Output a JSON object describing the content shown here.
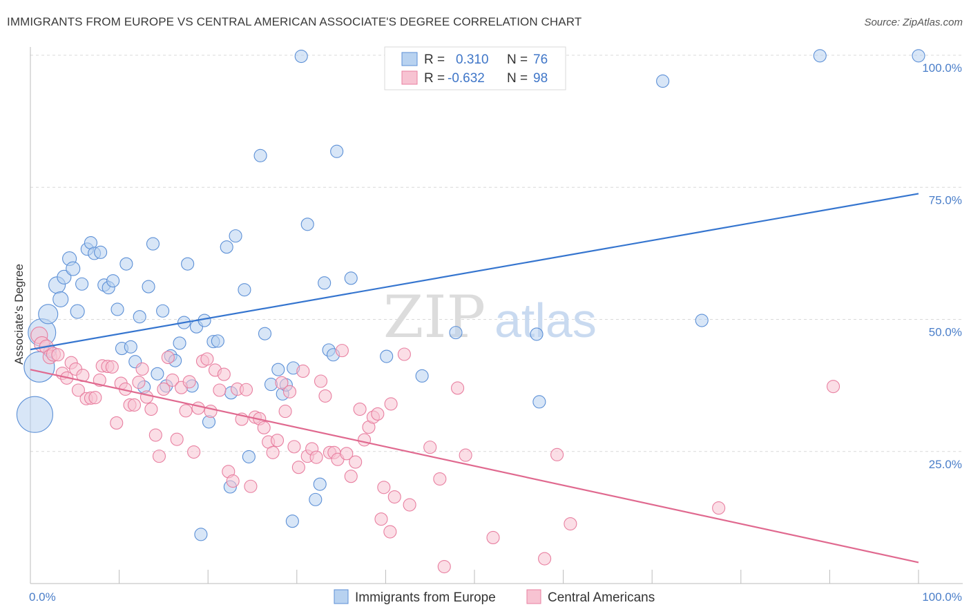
{
  "title": "IMMIGRANTS FROM EUROPE VS CENTRAL AMERICAN ASSOCIATE'S DEGREE CORRELATION CHART",
  "source": "Source: ZipAtlas.com",
  "watermark": {
    "zip": "ZIP",
    "atlas": "atlas"
  },
  "colors": {
    "blue_fill": "#b8d2f0",
    "blue_stroke": "#5b8fd6",
    "blue_line": "#3575cf",
    "pink_fill": "#f7c3d2",
    "pink_stroke": "#e87fa0",
    "pink_line": "#e0698f",
    "grid": "#d8d8d8",
    "tick_text": "#4a7ec9"
  },
  "legend": {
    "r_label": "R =",
    "n_label": "N =",
    "rows": [
      {
        "r": "0.310",
        "n": "76"
      },
      {
        "r": "-0.632",
        "n": "98"
      }
    ]
  },
  "chart_data": {
    "type": "scatter",
    "xlabel": "",
    "ylabel": "Associate's Degree",
    "xlim": [
      0,
      100
    ],
    "ylim": [
      0,
      100
    ],
    "x_tick_labels": [
      "0.0%",
      "100.0%"
    ],
    "y_tick_labels": [
      "25.0%",
      "50.0%",
      "75.0%",
      "100.0%"
    ],
    "y_ticks": [
      25,
      50,
      75,
      100
    ],
    "grid": true,
    "legend_position": "top-center",
    "series": [
      {
        "name": "Immigrants from Europe",
        "color": "#5b8fd6",
        "trend": {
          "x": [
            0,
            100
          ],
          "y": [
            44.3,
            73.8
          ]
        },
        "points": [
          [
            0.5,
            32,
            26
          ],
          [
            1,
            41,
            22
          ],
          [
            1.3,
            47.5,
            20
          ],
          [
            2,
            51,
            14
          ],
          [
            3,
            56.5,
            12
          ],
          [
            3.4,
            53.8,
            11
          ],
          [
            3.8,
            58,
            10
          ],
          [
            4.4,
            61.5,
            10
          ],
          [
            4.8,
            59.6,
            10
          ],
          [
            5.3,
            51.5,
            10
          ],
          [
            5.8,
            56.7,
            9
          ],
          [
            6.4,
            63.3,
            9
          ],
          [
            6.8,
            64.5,
            9
          ],
          [
            7.2,
            62.5,
            9
          ],
          [
            7.9,
            62.7,
            9
          ],
          [
            8.3,
            56.5,
            9
          ],
          [
            8.8,
            56,
            9
          ],
          [
            9.3,
            57.3,
            9
          ],
          [
            9.8,
            51.9,
            9
          ],
          [
            10.3,
            44.5,
            9
          ],
          [
            10.8,
            60.5,
            9
          ],
          [
            11.3,
            44.8,
            9
          ],
          [
            11.8,
            42,
            9
          ],
          [
            12.3,
            50.5,
            9
          ],
          [
            12.8,
            37.2,
            9
          ],
          [
            13.3,
            56.2,
            9
          ],
          [
            13.8,
            64.3,
            9
          ],
          [
            14.3,
            39.7,
            9
          ],
          [
            14.9,
            51.6,
            9
          ],
          [
            15.3,
            37.4,
            9
          ],
          [
            15.8,
            43.1,
            9
          ],
          [
            16.3,
            42.2,
            9
          ],
          [
            16.8,
            45.5,
            9
          ],
          [
            17.3,
            49.4,
            9
          ],
          [
            17.7,
            60.5,
            9
          ],
          [
            18.2,
            37.4,
            9
          ],
          [
            18.7,
            48.6,
            9
          ],
          [
            19.2,
            9.3,
            9
          ],
          [
            19.6,
            49.8,
            9
          ],
          [
            20.1,
            30.6,
            9
          ],
          [
            20.6,
            45.8,
            9
          ],
          [
            21.1,
            45.9,
            9
          ],
          [
            22.1,
            63.7,
            9
          ],
          [
            22.6,
            36.1,
            9
          ],
          [
            23.1,
            65.8,
            9
          ],
          [
            24.1,
            55.6,
            9
          ],
          [
            24.6,
            24,
            9
          ],
          [
            22.5,
            18.3,
            9
          ],
          [
            25.9,
            81,
            9
          ],
          [
            26.4,
            47.3,
            9
          ],
          [
            27.1,
            37.7,
            9
          ],
          [
            27.9,
            40.5,
            9
          ],
          [
            28.4,
            35.9,
            9
          ],
          [
            28.8,
            37.6,
            9
          ],
          [
            29.5,
            11.8,
            9
          ],
          [
            29.6,
            40.8,
            9
          ],
          [
            30.5,
            99.8,
            9
          ],
          [
            31.2,
            68,
            9
          ],
          [
            32.1,
            15.9,
            9
          ],
          [
            32.6,
            18.8,
            9
          ],
          [
            33.1,
            56.9,
            9
          ],
          [
            33.6,
            44.2,
            9
          ],
          [
            34.1,
            43.3,
            9
          ],
          [
            34.5,
            81.8,
            9
          ],
          [
            36.1,
            57.8,
            9
          ],
          [
            40.1,
            43,
            9
          ],
          [
            44.1,
            39.3,
            9
          ],
          [
            47.9,
            47.5,
            9
          ],
          [
            49.9,
            99.6,
            9
          ],
          [
            57,
            47.2,
            9
          ],
          [
            57.3,
            34.4,
            9
          ],
          [
            71.2,
            95.1,
            9
          ],
          [
            75.6,
            49.8,
            9
          ],
          [
            88.9,
            99.9,
            9
          ],
          [
            100,
            99.9,
            9
          ],
          [
            2.2,
            44,
            9
          ]
        ]
      },
      {
        "name": "Central Americans",
        "color": "#e87fa0",
        "trend": {
          "x": [
            0,
            100
          ],
          "y": [
            40.5,
            4
          ]
        },
        "points": [
          [
            1,
            47,
            12
          ],
          [
            1.3,
            45.3,
            11
          ],
          [
            1.8,
            44.8,
            10
          ],
          [
            2.2,
            42.9,
            10
          ],
          [
            2.6,
            43.4,
            10
          ],
          [
            3.1,
            43.3,
            9
          ],
          [
            3.6,
            39.8,
            9
          ],
          [
            4.1,
            38.9,
            9
          ],
          [
            4.6,
            41.8,
            9
          ],
          [
            5.1,
            40.6,
            9
          ],
          [
            5.4,
            36.6,
            9
          ],
          [
            5.9,
            39.4,
            9
          ],
          [
            6.3,
            35,
            9
          ],
          [
            6.8,
            35.1,
            9
          ],
          [
            7.3,
            35.2,
            9
          ],
          [
            7.8,
            38.5,
            9
          ],
          [
            8.1,
            41.2,
            9
          ],
          [
            8.7,
            41.1,
            9
          ],
          [
            9.2,
            41,
            9
          ],
          [
            9.7,
            30.4,
            9
          ],
          [
            10.2,
            37.9,
            9
          ],
          [
            10.7,
            36.8,
            9
          ],
          [
            11.2,
            33.8,
            9
          ],
          [
            11.7,
            33.8,
            9
          ],
          [
            12.2,
            38.1,
            9
          ],
          [
            12.6,
            40.6,
            9
          ],
          [
            13.1,
            35.3,
            9
          ],
          [
            13.6,
            33,
            9
          ],
          [
            14.1,
            28.1,
            9
          ],
          [
            14.5,
            24.1,
            9
          ],
          [
            15,
            36.8,
            9
          ],
          [
            15.5,
            42.8,
            9
          ],
          [
            16,
            38.5,
            9
          ],
          [
            16.5,
            27.3,
            9
          ],
          [
            17,
            37.1,
            9
          ],
          [
            17.5,
            32.7,
            9
          ],
          [
            17.9,
            38.2,
            9
          ],
          [
            18.4,
            24.9,
            9
          ],
          [
            18.9,
            33.2,
            9
          ],
          [
            19.4,
            42.1,
            9
          ],
          [
            19.9,
            42.5,
            9
          ],
          [
            20.3,
            32.6,
            9
          ],
          [
            20.8,
            40.4,
            9
          ],
          [
            21.3,
            36.6,
            9
          ],
          [
            21.8,
            39.6,
            9
          ],
          [
            22.3,
            21.2,
            9
          ],
          [
            22.8,
            19.4,
            9
          ],
          [
            23.3,
            36.8,
            9
          ],
          [
            23.8,
            31.1,
            9
          ],
          [
            24.3,
            36.7,
            9
          ],
          [
            24.8,
            18.4,
            9
          ],
          [
            25.3,
            31.5,
            9
          ],
          [
            25.8,
            31.2,
            9
          ],
          [
            26.3,
            29.5,
            9
          ],
          [
            26.8,
            26.8,
            9
          ],
          [
            27.3,
            24.8,
            9
          ],
          [
            27.8,
            27.1,
            9
          ],
          [
            28.3,
            38,
            9
          ],
          [
            28.7,
            32.6,
            9
          ],
          [
            29.2,
            36.3,
            9
          ],
          [
            29.7,
            25.9,
            9
          ],
          [
            30.2,
            22,
            9
          ],
          [
            30.7,
            40.2,
            9
          ],
          [
            31.2,
            24.1,
            9
          ],
          [
            31.7,
            25.5,
            9
          ],
          [
            32.2,
            23.9,
            9
          ],
          [
            32.7,
            38.3,
            9
          ],
          [
            33.2,
            35.5,
            9
          ],
          [
            33.7,
            24.8,
            9
          ],
          [
            34.2,
            24.8,
            9
          ],
          [
            34.6,
            23.5,
            9
          ],
          [
            35.1,
            44.1,
            9
          ],
          [
            35.6,
            24.6,
            9
          ],
          [
            36.1,
            20.3,
            9
          ],
          [
            36.6,
            23,
            9
          ],
          [
            37.1,
            33,
            9
          ],
          [
            37.6,
            27.2,
            9
          ],
          [
            38.1,
            29.6,
            9
          ],
          [
            38.6,
            31.5,
            9
          ],
          [
            39.1,
            32.1,
            9
          ],
          [
            39.5,
            12.2,
            9
          ],
          [
            39.8,
            18.2,
            9
          ],
          [
            40.5,
            9.8,
            9
          ],
          [
            40.6,
            34,
            9
          ],
          [
            41,
            16.4,
            9
          ],
          [
            42.1,
            43.4,
            9
          ],
          [
            42.7,
            14.9,
            9
          ],
          [
            45,
            25.8,
            9
          ],
          [
            46.1,
            19.8,
            9
          ],
          [
            46.6,
            3.2,
            9
          ],
          [
            48.1,
            37,
            9
          ],
          [
            49,
            24.3,
            9
          ],
          [
            52.1,
            8.7,
            9
          ],
          [
            57.9,
            4.7,
            9
          ],
          [
            59.3,
            24.4,
            9
          ],
          [
            60.8,
            11.3,
            9
          ],
          [
            77.5,
            14.3,
            9
          ],
          [
            90.4,
            37.3,
            9
          ]
        ]
      }
    ]
  }
}
